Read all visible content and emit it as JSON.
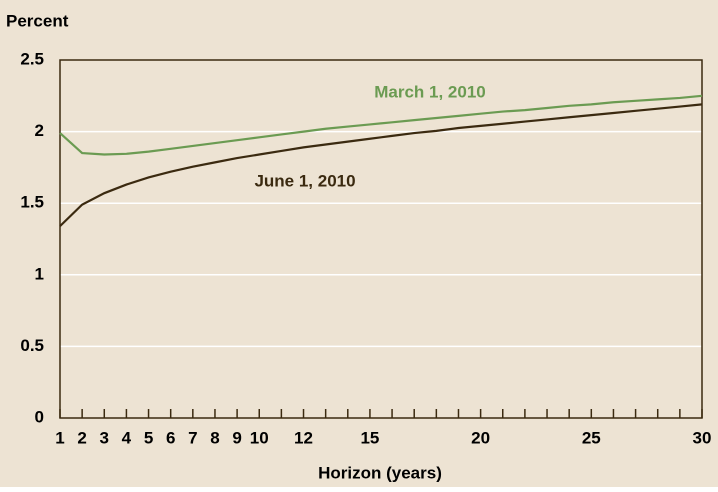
{
  "chart_data": {
    "type": "line",
    "y_axis_label": "Percent",
    "x_axis_label": "Horizon (years)",
    "x": [
      1,
      2,
      3,
      4,
      5,
      6,
      7,
      8,
      9,
      10,
      11,
      12,
      13,
      14,
      15,
      16,
      17,
      18,
      19,
      20,
      21,
      22,
      23,
      24,
      25,
      26,
      27,
      28,
      29,
      30
    ],
    "series": [
      {
        "name": "March 1, 2010",
        "color": "#6b9b52",
        "values": [
          1.99,
          1.85,
          1.84,
          1.845,
          1.86,
          1.88,
          1.9,
          1.92,
          1.94,
          1.96,
          1.98,
          2.0,
          2.02,
          2.035,
          2.05,
          2.065,
          2.08,
          2.095,
          2.11,
          2.125,
          2.14,
          2.15,
          2.165,
          2.18,
          2.19,
          2.205,
          2.215,
          2.225,
          2.235,
          2.25
        ]
      },
      {
        "name": "June 1, 2010",
        "color": "#3b2a10",
        "values": [
          1.34,
          1.49,
          1.57,
          1.63,
          1.68,
          1.72,
          1.755,
          1.785,
          1.815,
          1.84,
          1.865,
          1.89,
          1.91,
          1.93,
          1.95,
          1.97,
          1.99,
          2.005,
          2.025,
          2.04,
          2.055,
          2.07,
          2.085,
          2.1,
          2.115,
          2.13,
          2.145,
          2.16,
          2.175,
          2.19
        ]
      }
    ],
    "xlim": [
      1,
      30
    ],
    "xticks": [
      1,
      2,
      3,
      4,
      5,
      6,
      7,
      8,
      9,
      10,
      12,
      15,
      20,
      25,
      30
    ],
    "x_minor_ticks": [
      1,
      2,
      3,
      4,
      5,
      6,
      7,
      8,
      9,
      10,
      11,
      12,
      13,
      14,
      15,
      16,
      17,
      18,
      19,
      20,
      21,
      22,
      23,
      24,
      25,
      26,
      27,
      28,
      29,
      30
    ],
    "ylim": [
      0,
      2.5
    ],
    "yticks": [
      0,
      0.5,
      1,
      1.5,
      2,
      2.5
    ],
    "grid": true,
    "background": "#ede3d3"
  }
}
